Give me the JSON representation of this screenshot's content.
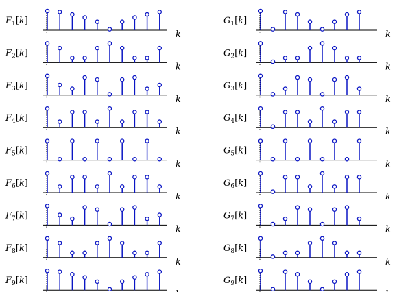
{
  "stem_color": "#0b16c4",
  "axis_label": "k",
  "left_panels": [
    {
      "name": "F",
      "sub": "1",
      "values": [
        1.0,
        0.95,
        0.82,
        0.66,
        0.44,
        0.05,
        0.44,
        0.66,
        0.82,
        0.95
      ]
    },
    {
      "name": "F",
      "sub": "2",
      "values": [
        1.0,
        0.76,
        0.25,
        0.25,
        0.76,
        1.0,
        0.76,
        0.25,
        0.25,
        0.76
      ]
    },
    {
      "name": "F",
      "sub": "3",
      "values": [
        1.0,
        0.53,
        0.33,
        0.92,
        0.81,
        0.05,
        0.81,
        0.92,
        0.33,
        0.53
      ]
    },
    {
      "name": "F",
      "sub": "4",
      "values": [
        1.0,
        0.31,
        0.81,
        0.81,
        0.31,
        1.0,
        0.31,
        0.81,
        0.81,
        0.31
      ]
    },
    {
      "name": "F",
      "sub": "5",
      "values": [
        1.0,
        0.05,
        1.0,
        0.05,
        1.0,
        0.05,
        1.0,
        0.05,
        1.0,
        0.05
      ]
    },
    {
      "name": "F",
      "sub": "6",
      "values": [
        1.0,
        0.31,
        0.81,
        0.81,
        0.31,
        1.0,
        0.31,
        0.81,
        0.81,
        0.31
      ]
    },
    {
      "name": "F",
      "sub": "7",
      "values": [
        1.0,
        0.53,
        0.33,
        0.92,
        0.81,
        0.05,
        0.81,
        0.92,
        0.33,
        0.53
      ]
    },
    {
      "name": "F",
      "sub": "8",
      "values": [
        1.0,
        0.76,
        0.25,
        0.25,
        0.76,
        1.0,
        0.76,
        0.25,
        0.25,
        0.76
      ]
    },
    {
      "name": "F",
      "sub": "9",
      "values": [
        1.0,
        0.95,
        0.82,
        0.66,
        0.44,
        0.05,
        0.44,
        0.66,
        0.82,
        0.95
      ]
    }
  ],
  "right_panels": [
    {
      "name": "G",
      "sub": "1",
      "values": [
        1.0,
        0.05,
        0.95,
        0.82,
        0.44,
        0.05,
        0.44,
        0.82,
        0.95
      ]
    },
    {
      "name": "G",
      "sub": "2",
      "values": [
        1.0,
        0.05,
        0.25,
        0.25,
        0.76,
        1.0,
        0.76,
        0.25,
        0.25
      ]
    },
    {
      "name": "G",
      "sub": "3",
      "values": [
        1.0,
        0.05,
        0.33,
        0.92,
        0.81,
        0.05,
        0.81,
        0.92,
        0.33
      ]
    },
    {
      "name": "G",
      "sub": "4",
      "values": [
        1.0,
        0.05,
        0.81,
        0.81,
        0.31,
        1.0,
        0.31,
        0.81,
        0.81
      ]
    },
    {
      "name": "G",
      "sub": "5",
      "values": [
        1.0,
        0.05,
        1.0,
        0.05,
        1.0,
        0.05,
        1.0,
        0.05,
        1.0
      ]
    },
    {
      "name": "G",
      "sub": "6",
      "values": [
        1.0,
        0.05,
        0.81,
        0.81,
        0.31,
        1.0,
        0.31,
        0.81,
        0.81
      ]
    },
    {
      "name": "G",
      "sub": "7",
      "values": [
        1.0,
        0.05,
        0.33,
        0.92,
        0.81,
        0.05,
        0.81,
        0.92,
        0.33
      ]
    },
    {
      "name": "G",
      "sub": "8",
      "values": [
        1.0,
        0.05,
        0.25,
        0.25,
        0.76,
        1.0,
        0.76,
        0.25,
        0.25
      ]
    },
    {
      "name": "G",
      "sub": "9",
      "values": [
        1.0,
        0.05,
        0.95,
        0.82,
        0.44,
        0.05,
        0.44,
        0.82,
        0.95
      ]
    }
  ]
}
